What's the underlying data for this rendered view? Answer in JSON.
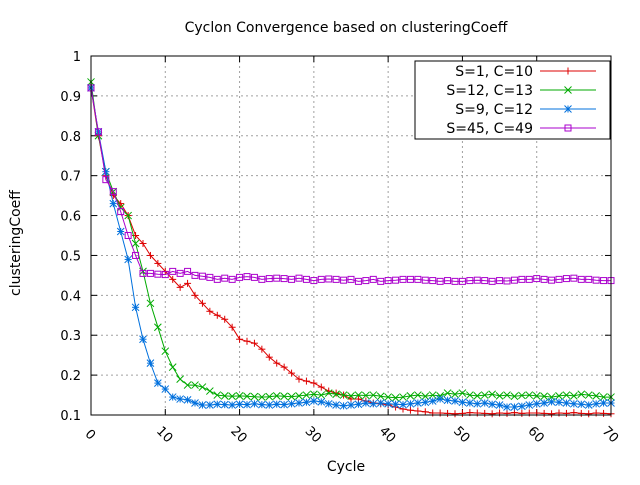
{
  "chart_data": {
    "type": "line",
    "title": "Cyclon Convergence based on clusteringCoeff",
    "xlabel": "Cycle",
    "ylabel": "clusteringCoeff",
    "xlim": [
      0,
      70
    ],
    "ylim": [
      0.1,
      1
    ],
    "xticks": [
      "0",
      "10",
      "20",
      "30",
      "40",
      "50",
      "60",
      "70"
    ],
    "yticks": [
      "0.1",
      "0.2",
      "0.3",
      "0.4",
      "0.5",
      "0.6",
      "0.7",
      "0.8",
      "0.9",
      "1"
    ],
    "grid": true,
    "legend_position": "top-right",
    "series": [
      {
        "name": "S=1, C=10",
        "color": "#dd0000",
        "marker": "plus",
        "x": [
          0,
          1,
          2,
          3,
          4,
          5,
          6,
          7,
          8,
          9,
          10,
          11,
          12,
          13,
          14,
          15,
          16,
          17,
          18,
          19,
          20,
          21,
          22,
          23,
          24,
          25,
          26,
          27,
          28,
          29,
          30,
          31,
          32,
          33,
          34,
          35,
          36,
          37,
          38,
          39,
          40,
          41,
          42,
          43,
          44,
          45,
          46,
          47,
          48,
          49,
          50,
          51,
          52,
          53,
          54,
          55,
          56,
          57,
          58,
          59,
          60,
          61,
          62,
          63,
          64,
          65,
          66,
          67,
          68,
          69,
          70
        ],
        "values": [
          0.92,
          0.8,
          0.7,
          0.65,
          0.63,
          0.6,
          0.55,
          0.53,
          0.5,
          0.48,
          0.46,
          0.44,
          0.42,
          0.43,
          0.4,
          0.38,
          0.36,
          0.35,
          0.34,
          0.32,
          0.29,
          0.285,
          0.28,
          0.265,
          0.245,
          0.23,
          0.22,
          0.205,
          0.19,
          0.185,
          0.18,
          0.17,
          0.16,
          0.155,
          0.15,
          0.14,
          0.14,
          0.135,
          0.13,
          0.128,
          0.125,
          0.12,
          0.115,
          0.112,
          0.11,
          0.108,
          0.105,
          0.105,
          0.104,
          0.103,
          0.104,
          0.106,
          0.105,
          0.104,
          0.103,
          0.105,
          0.104,
          0.106,
          0.104,
          0.105,
          0.105,
          0.104,
          0.103,
          0.105,
          0.104,
          0.106,
          0.104,
          0.103,
          0.105,
          0.104,
          0.103
        ]
      },
      {
        "name": "S=12, C=13",
        "color": "#00aa00",
        "marker": "x",
        "x": [
          0,
          1,
          2,
          3,
          4,
          5,
          6,
          7,
          8,
          9,
          10,
          11,
          12,
          13,
          14,
          15,
          16,
          17,
          18,
          19,
          20,
          21,
          22,
          23,
          24,
          25,
          26,
          27,
          28,
          29,
          30,
          31,
          32,
          33,
          34,
          35,
          36,
          37,
          38,
          39,
          40,
          41,
          42,
          43,
          44,
          45,
          46,
          47,
          48,
          49,
          50,
          51,
          52,
          53,
          54,
          55,
          56,
          57,
          58,
          59,
          60,
          61,
          62,
          63,
          64,
          65,
          66,
          67,
          68,
          69,
          70
        ],
        "values": [
          0.935,
          0.8,
          0.71,
          0.66,
          0.62,
          0.6,
          0.53,
          0.46,
          0.38,
          0.32,
          0.26,
          0.22,
          0.19,
          0.175,
          0.175,
          0.17,
          0.16,
          0.15,
          0.148,
          0.147,
          0.148,
          0.147,
          0.146,
          0.145,
          0.146,
          0.148,
          0.147,
          0.146,
          0.148,
          0.15,
          0.152,
          0.15,
          0.155,
          0.152,
          0.15,
          0.148,
          0.15,
          0.149,
          0.15,
          0.147,
          0.145,
          0.143,
          0.145,
          0.148,
          0.15,
          0.147,
          0.15,
          0.148,
          0.155,
          0.152,
          0.155,
          0.15,
          0.148,
          0.15,
          0.152,
          0.148,
          0.15,
          0.147,
          0.149,
          0.15,
          0.148,
          0.147,
          0.145,
          0.148,
          0.15,
          0.148,
          0.152,
          0.15,
          0.148,
          0.145,
          0.145
        ]
      },
      {
        "name": "S=9, C=12",
        "color": "#0070dd",
        "marker": "star",
        "x": [
          0,
          1,
          2,
          3,
          4,
          5,
          6,
          7,
          8,
          9,
          10,
          11,
          12,
          13,
          14,
          15,
          16,
          17,
          18,
          19,
          20,
          21,
          22,
          23,
          24,
          25,
          26,
          27,
          28,
          29,
          30,
          31,
          32,
          33,
          34,
          35,
          36,
          37,
          38,
          39,
          40,
          41,
          42,
          43,
          44,
          45,
          46,
          47,
          48,
          49,
          50,
          51,
          52,
          53,
          54,
          55,
          56,
          57,
          58,
          59,
          60,
          61,
          62,
          63,
          64,
          65,
          66,
          67,
          68,
          69,
          70
        ],
        "values": [
          0.92,
          0.81,
          0.71,
          0.63,
          0.56,
          0.49,
          0.37,
          0.29,
          0.23,
          0.18,
          0.165,
          0.145,
          0.14,
          0.138,
          0.13,
          0.125,
          0.125,
          0.127,
          0.126,
          0.125,
          0.127,
          0.126,
          0.128,
          0.126,
          0.125,
          0.127,
          0.126,
          0.128,
          0.13,
          0.132,
          0.135,
          0.133,
          0.128,
          0.125,
          0.123,
          0.125,
          0.127,
          0.13,
          0.128,
          0.13,
          0.128,
          0.127,
          0.126,
          0.128,
          0.13,
          0.132,
          0.135,
          0.14,
          0.137,
          0.135,
          0.132,
          0.13,
          0.128,
          0.13,
          0.127,
          0.125,
          0.12,
          0.12,
          0.122,
          0.125,
          0.128,
          0.13,
          0.133,
          0.132,
          0.13,
          0.128,
          0.127,
          0.125,
          0.128,
          0.13,
          0.13
        ]
      },
      {
        "name": "S=45, C=49",
        "color": "#aa00cc",
        "marker": "square",
        "x": [
          0,
          1,
          2,
          3,
          4,
          5,
          6,
          7,
          8,
          9,
          10,
          11,
          12,
          13,
          14,
          15,
          16,
          17,
          18,
          19,
          20,
          21,
          22,
          23,
          24,
          25,
          26,
          27,
          28,
          29,
          30,
          31,
          32,
          33,
          34,
          35,
          36,
          37,
          38,
          39,
          40,
          41,
          42,
          43,
          44,
          45,
          46,
          47,
          48,
          49,
          50,
          51,
          52,
          53,
          54,
          55,
          56,
          57,
          58,
          59,
          60,
          61,
          62,
          63,
          64,
          65,
          66,
          67,
          68,
          69,
          70
        ],
        "values": [
          0.92,
          0.81,
          0.69,
          0.66,
          0.61,
          0.55,
          0.5,
          0.455,
          0.455,
          0.453,
          0.452,
          0.46,
          0.455,
          0.46,
          0.45,
          0.448,
          0.445,
          0.44,
          0.443,
          0.44,
          0.445,
          0.447,
          0.445,
          0.44,
          0.442,
          0.443,
          0.442,
          0.44,
          0.443,
          0.44,
          0.437,
          0.44,
          0.441,
          0.44,
          0.438,
          0.44,
          0.435,
          0.437,
          0.44,
          0.435,
          0.437,
          0.438,
          0.44,
          0.44,
          0.44,
          0.438,
          0.437,
          0.435,
          0.437,
          0.435,
          0.435,
          0.437,
          0.438,
          0.437,
          0.435,
          0.437,
          0.436,
          0.438,
          0.44,
          0.44,
          0.442,
          0.44,
          0.438,
          0.44,
          0.442,
          0.443,
          0.44,
          0.44,
          0.438,
          0.437,
          0.437
        ]
      }
    ]
  }
}
